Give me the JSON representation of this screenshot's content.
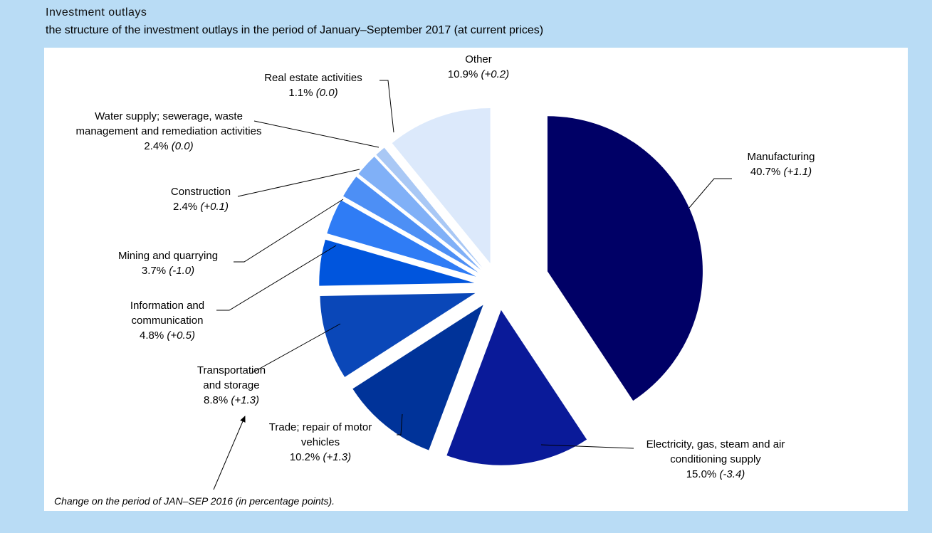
{
  "chart_data": {
    "type": "pie",
    "title": "Investment outlays",
    "subtitle": "the structure of the investment outlays in the period of January–September 2017 (at current prices)",
    "annotation": "Change on the period of JAN–SEP 2016 (in percentage points).",
    "categories": [
      "Manufacturing",
      "Electricity, gas, steam and air conditioning supply",
      "Trade; repair of motor vehicles",
      "Transportation and storage",
      "Information and communication",
      "Mining and quarrying",
      "Construction",
      "Water supply; sewerage, waste management and remediation activities",
      "Real estate activities",
      "Other"
    ],
    "values": [
      40.7,
      15.0,
      10.2,
      8.8,
      4.8,
      3.7,
      2.4,
      2.4,
      1.1,
      10.9
    ],
    "value_labels": [
      "40.7%",
      "15.0%",
      "10.2%",
      "8.8%",
      "4.8%",
      "3.7%",
      "2.4%",
      "2.4%",
      "1.1%",
      "10.9%"
    ],
    "change_labels": [
      "(+1.1)",
      "(-3.4)",
      "(+1.3)",
      "(+1.3)",
      "(+0.5)",
      "(-1.0)",
      "(+0.1)",
      "(0.0)",
      "(0.0)",
      "(+0.2)"
    ],
    "colors": [
      "#000066",
      "#0a1a99",
      "#003399",
      "#0a47b8",
      "#0055dd",
      "#2f7cf5",
      "#4d8ff5",
      "#80b0f7",
      "#a9c8f5",
      "#dce9fb"
    ]
  }
}
